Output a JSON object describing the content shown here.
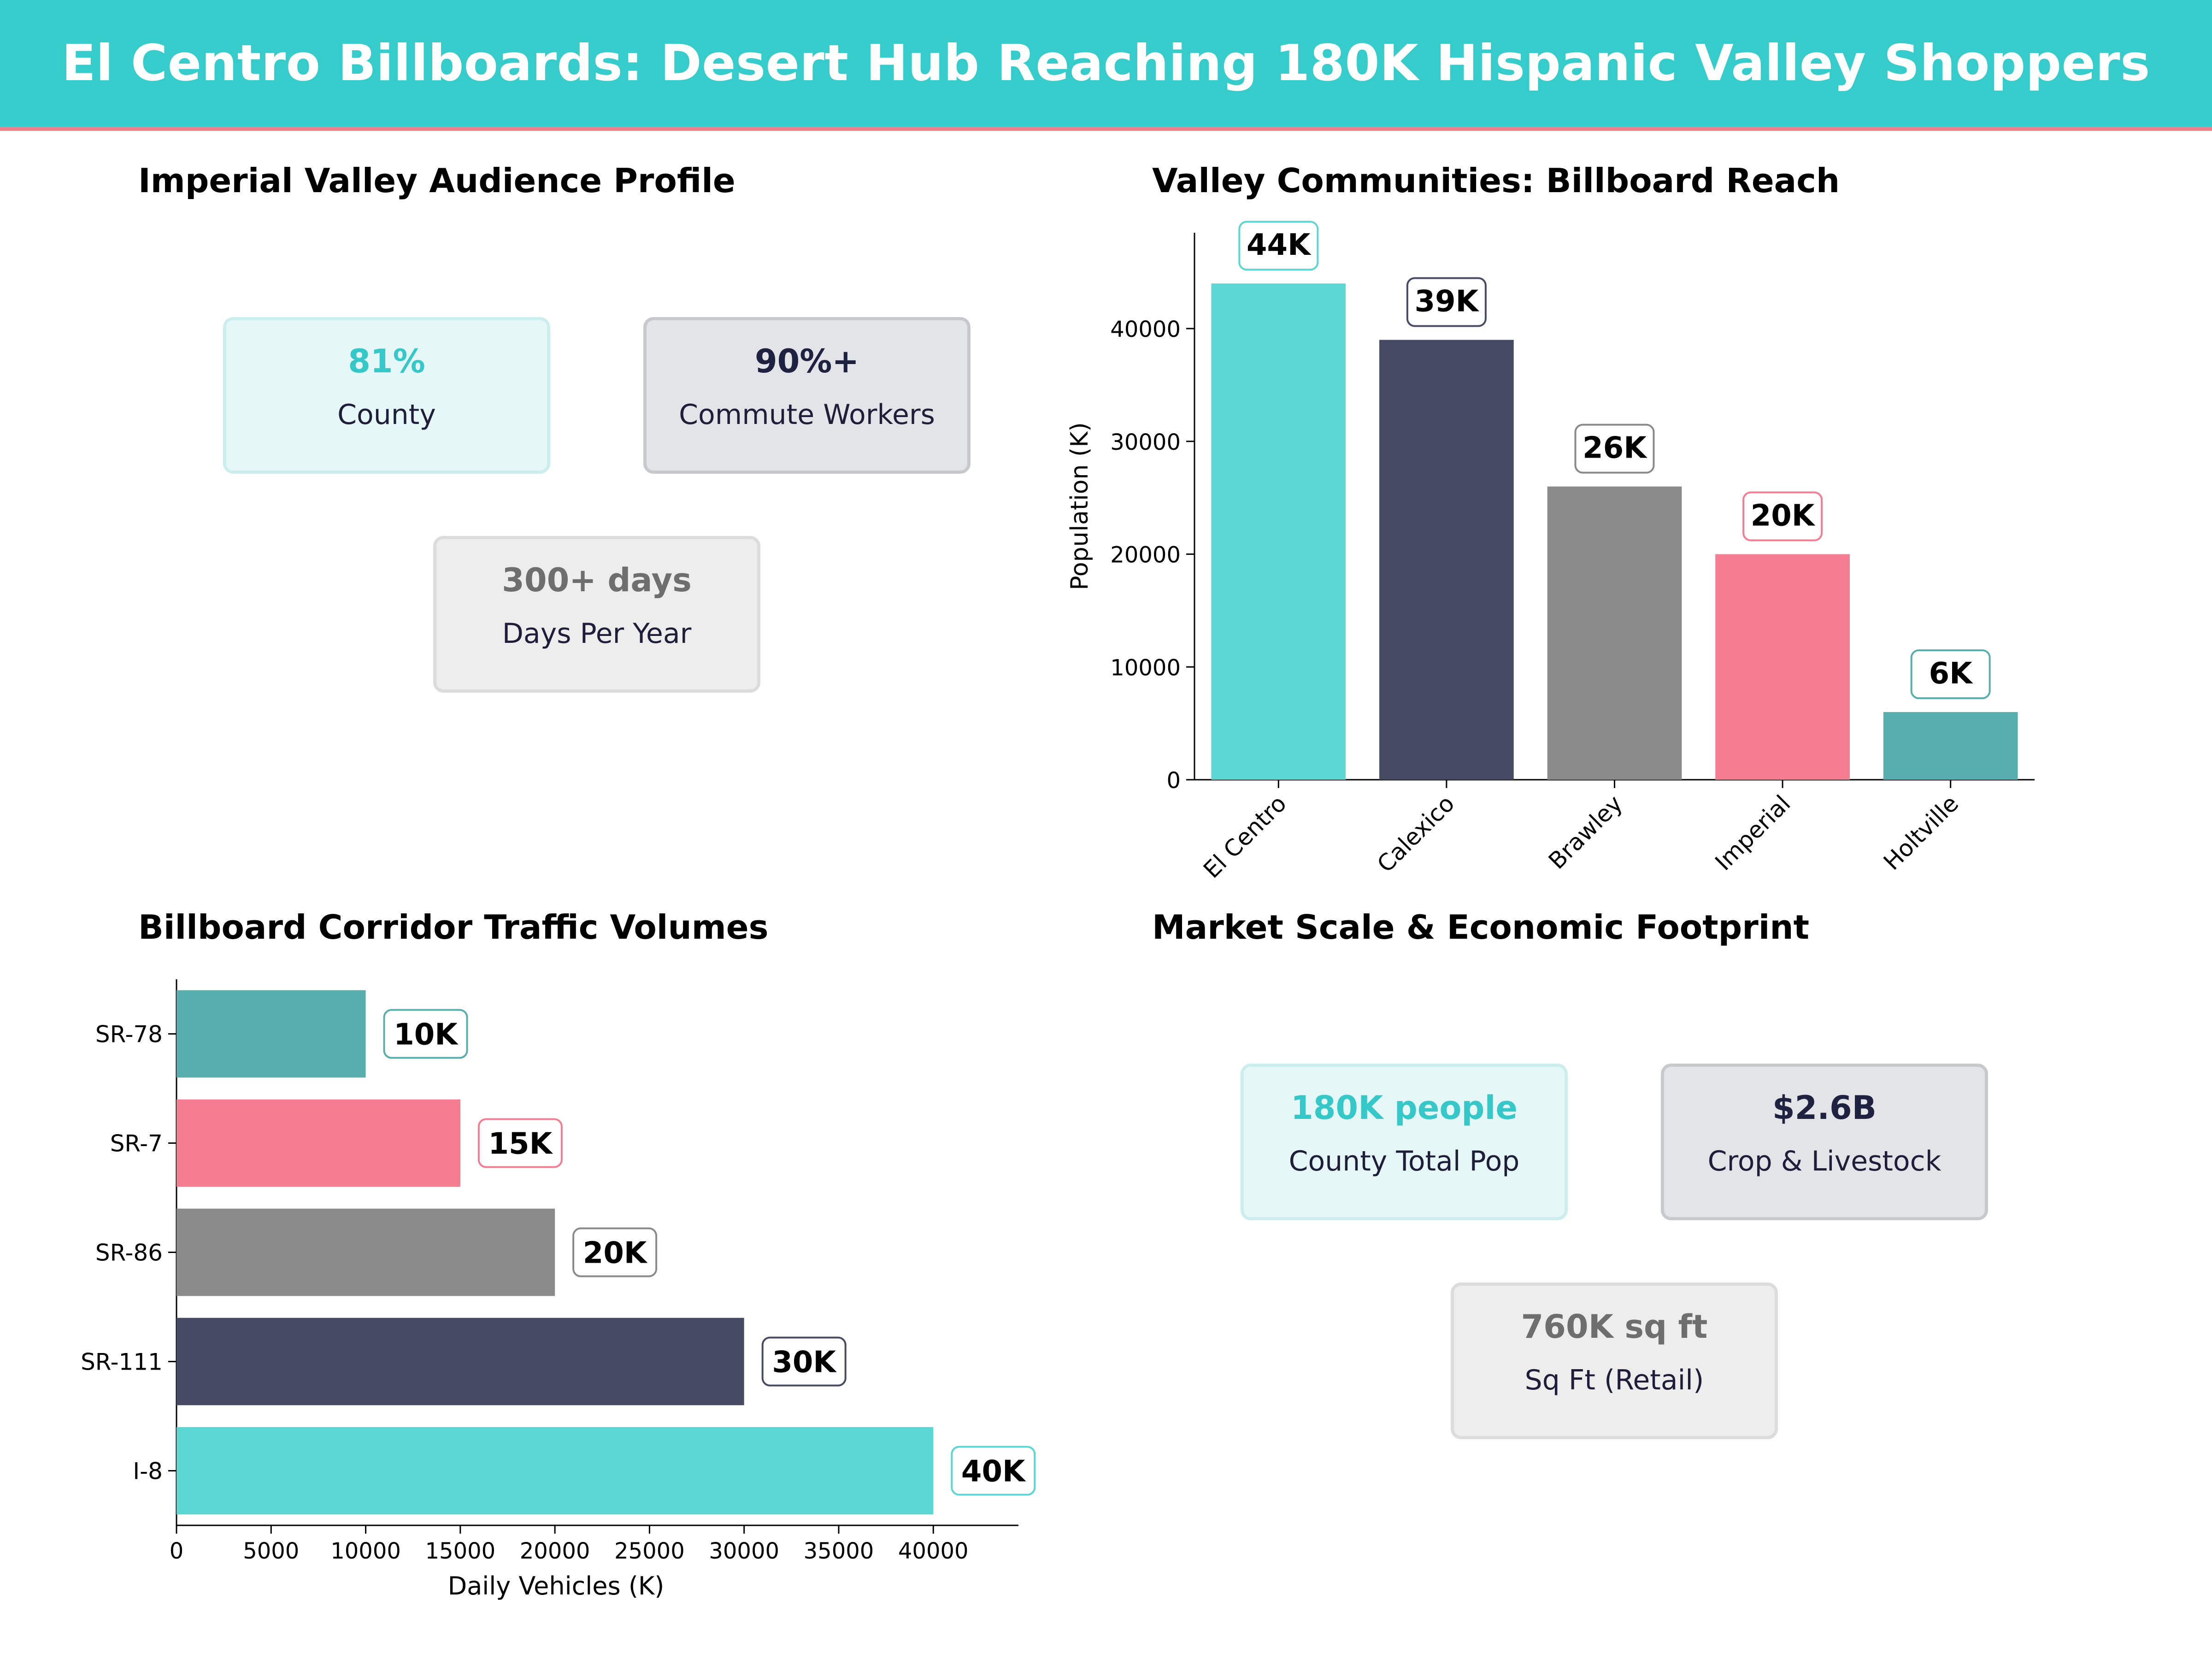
{
  "header": {
    "title": "El Centro Billboards: Desert Hub Reaching 180K Hispanic Valley Shoppers"
  },
  "colors": {
    "teal": "#5cd6d3",
    "navy": "#464a62",
    "gray": "#8a8a8a",
    "pink": "#f57d92",
    "darkteal": "#58aeae",
    "banner": "#36cccc",
    "banner_line": "#f07f90"
  },
  "audience": {
    "title": "Imperial Valley Audience Profile",
    "cards": [
      {
        "value": "81%",
        "label": "County"
      },
      {
        "value": "90%+",
        "label": "Commute Workers"
      },
      {
        "value": "300+ days",
        "label": "Days Per Year"
      }
    ]
  },
  "market": {
    "title": "Market Scale & Economic Footprint",
    "cards": [
      {
        "value": "180K people",
        "label": "County Total Pop"
      },
      {
        "value": "$2.6B",
        "label": "Crop & Livestock"
      },
      {
        "value": "760K sq ft",
        "label": "Sq Ft (Retail)"
      }
    ]
  },
  "chart_data": [
    {
      "type": "bar",
      "title": "Valley Communities: Billboard Reach",
      "categories": [
        "El Centro",
        "Calexico",
        "Brawley",
        "Imperial",
        "Holtville"
      ],
      "values": [
        44000,
        39000,
        26000,
        20000,
        6000
      ],
      "data_labels": [
        "44K",
        "39K",
        "26K",
        "20K",
        "6K"
      ],
      "colors": [
        "#5cd6d3",
        "#464a62",
        "#8a8a8a",
        "#f57d92",
        "#58aeae"
      ],
      "xlabel": "",
      "ylabel": "Population (K)",
      "ylim": [
        0,
        48500
      ],
      "yticks": [
        0,
        10000,
        20000,
        30000,
        40000
      ],
      "grid": false
    },
    {
      "type": "bar",
      "orientation": "horizontal",
      "title": "Billboard Corridor Traffic Volumes",
      "categories": [
        "SR-78",
        "SR-7",
        "SR-86",
        "SR-111",
        "I-8"
      ],
      "values": [
        10000,
        15000,
        20000,
        30000,
        40000
      ],
      "data_labels": [
        "10K",
        "15K",
        "20K",
        "30K",
        "40K"
      ],
      "colors": [
        "#58aeae",
        "#f57d92",
        "#8a8a8a",
        "#464a62",
        "#5cd6d3"
      ],
      "xlabel": "Daily Vehicles (K)",
      "ylabel": "",
      "xlim": [
        0,
        44500
      ],
      "xticks": [
        0,
        5000,
        10000,
        15000,
        20000,
        25000,
        30000,
        35000,
        40000
      ],
      "grid": false
    }
  ]
}
